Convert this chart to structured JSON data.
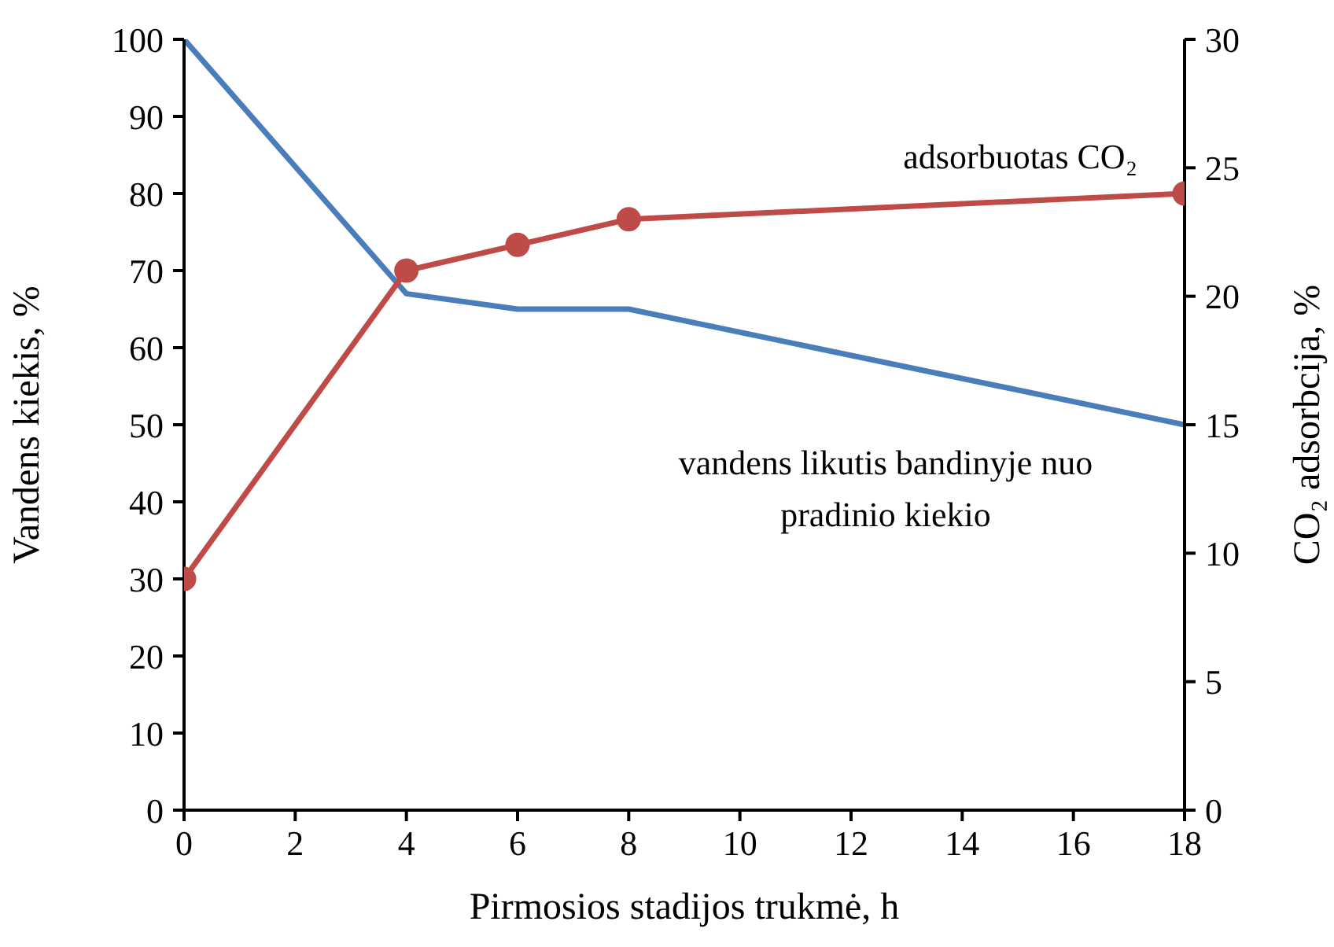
{
  "chart_data": {
    "type": "line",
    "xlabel": "Pirmosios stadijos trukmė, h",
    "ylabel": "Vandens kiekis, %",
    "y2label": "CO₂ adsorbcija, %",
    "series": [
      {
        "name": "vandens likutis bandinyje nuo pradinio kiekio",
        "color": "#4a7ebb",
        "x": [
          0,
          4,
          6,
          8,
          18
        ],
        "values": [
          100,
          67,
          65,
          65,
          50
        ],
        "marker": "none"
      },
      {
        "name": "adsorbuotas CO₂",
        "color": "#be4b48",
        "x": [
          0,
          4,
          6,
          8,
          18
        ],
        "values": [
          9,
          21,
          22,
          23,
          24
        ],
        "axis": "y2",
        "marker": "circle"
      }
    ],
    "xlim": [
      0,
      18
    ],
    "xticks": [
      0,
      2,
      4,
      6,
      8,
      10,
      12,
      14,
      16,
      18
    ],
    "ylim": [
      0,
      100
    ],
    "yticks": [
      0,
      10,
      20,
      30,
      40,
      50,
      60,
      70,
      80,
      90,
      100
    ],
    "y2lim": [
      0,
      30
    ],
    "y2ticks": [
      0,
      5,
      10,
      15,
      20,
      25,
      30
    ],
    "grid": false,
    "legend": false
  }
}
